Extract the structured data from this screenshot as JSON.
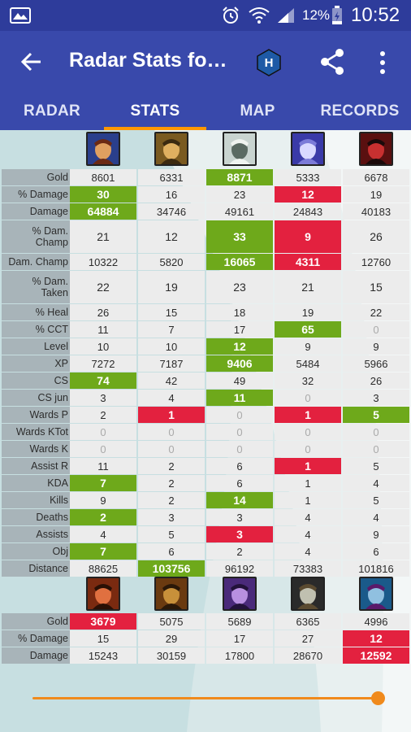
{
  "status": {
    "battery": "12%",
    "time": "10:52"
  },
  "appbar": {
    "title": "Radar Stats fo…",
    "badge": "H"
  },
  "tabs": [
    "RADAR",
    "STATS",
    "MAP",
    "RECORDS"
  ],
  "active_tab": 1,
  "colors": {
    "primary": "#3949ab",
    "status": "#2e3c9b",
    "accent": "#ff9800",
    "good": "#6ea91b",
    "bad": "#e3213f",
    "label_bg": "#a8b4b9",
    "cell_bg": "#ececec"
  },
  "team1": {
    "rows": [
      {
        "label": "Gold",
        "values": [
          [
            "8601",
            ""
          ],
          [
            "6331",
            ""
          ],
          [
            "8871",
            "green"
          ],
          [
            "5333",
            ""
          ],
          [
            "6678",
            ""
          ]
        ]
      },
      {
        "label": "% Damage",
        "values": [
          [
            "30",
            "green"
          ],
          [
            "16",
            ""
          ],
          [
            "23",
            ""
          ],
          [
            "12",
            "red"
          ],
          [
            "19",
            ""
          ]
        ]
      },
      {
        "label": "Damage",
        "values": [
          [
            "64884",
            "green"
          ],
          [
            "34746",
            ""
          ],
          [
            "49161",
            ""
          ],
          [
            "24843",
            ""
          ],
          [
            "40183",
            ""
          ]
        ]
      },
      {
        "label": "% Dam.\nChamp",
        "tall": true,
        "values": [
          [
            "21",
            ""
          ],
          [
            "12",
            ""
          ],
          [
            "33",
            "green"
          ],
          [
            "9",
            "red"
          ],
          [
            "26",
            ""
          ]
        ]
      },
      {
        "label": "Dam. Champ",
        "values": [
          [
            "10322",
            ""
          ],
          [
            "5820",
            ""
          ],
          [
            "16065",
            "green"
          ],
          [
            "4311",
            "red"
          ],
          [
            "12760",
            ""
          ]
        ]
      },
      {
        "label": "% Dam.\nTaken",
        "tall": true,
        "values": [
          [
            "22",
            ""
          ],
          [
            "19",
            ""
          ],
          [
            "23",
            ""
          ],
          [
            "21",
            ""
          ],
          [
            "15",
            ""
          ]
        ]
      },
      {
        "label": "% Heal",
        "values": [
          [
            "26",
            ""
          ],
          [
            "15",
            ""
          ],
          [
            "18",
            ""
          ],
          [
            "19",
            ""
          ],
          [
            "22",
            ""
          ]
        ]
      },
      {
        "label": "% CCT",
        "values": [
          [
            "11",
            ""
          ],
          [
            "7",
            ""
          ],
          [
            "17",
            ""
          ],
          [
            "65",
            "green"
          ],
          [
            "0",
            "zero"
          ]
        ]
      },
      {
        "label": "Level",
        "values": [
          [
            "10",
            ""
          ],
          [
            "10",
            ""
          ],
          [
            "12",
            "green"
          ],
          [
            "9",
            ""
          ],
          [
            "9",
            ""
          ]
        ]
      },
      {
        "label": "XP",
        "values": [
          [
            "7272",
            ""
          ],
          [
            "7187",
            ""
          ],
          [
            "9406",
            "green"
          ],
          [
            "5484",
            ""
          ],
          [
            "5966",
            ""
          ]
        ]
      },
      {
        "label": "CS",
        "values": [
          [
            "74",
            "green"
          ],
          [
            "42",
            ""
          ],
          [
            "49",
            ""
          ],
          [
            "32",
            ""
          ],
          [
            "26",
            ""
          ]
        ]
      },
      {
        "label": "CS jun",
        "values": [
          [
            "3",
            ""
          ],
          [
            "4",
            ""
          ],
          [
            "11",
            "green"
          ],
          [
            "0",
            "zero"
          ],
          [
            "3",
            ""
          ]
        ]
      },
      {
        "label": "Wards P",
        "values": [
          [
            "2",
            ""
          ],
          [
            "1",
            "red"
          ],
          [
            "0",
            "zero"
          ],
          [
            "1",
            "red"
          ],
          [
            "5",
            "green"
          ]
        ]
      },
      {
        "label": "Wards KTot",
        "values": [
          [
            "0",
            "zero"
          ],
          [
            "0",
            "zero"
          ],
          [
            "0",
            "zero"
          ],
          [
            "0",
            "zero"
          ],
          [
            "0",
            "zero"
          ]
        ]
      },
      {
        "label": "Wards K",
        "values": [
          [
            "0",
            "zero"
          ],
          [
            "0",
            "zero"
          ],
          [
            "0",
            "zero"
          ],
          [
            "0",
            "zero"
          ],
          [
            "0",
            "zero"
          ]
        ]
      },
      {
        "label": "Assist R",
        "values": [
          [
            "11",
            ""
          ],
          [
            "2",
            ""
          ],
          [
            "6",
            ""
          ],
          [
            "1",
            "red"
          ],
          [
            "5",
            ""
          ]
        ]
      },
      {
        "label": "KDA",
        "values": [
          [
            "7",
            "green"
          ],
          [
            "2",
            ""
          ],
          [
            "6",
            ""
          ],
          [
            "1",
            ""
          ],
          [
            "4",
            ""
          ]
        ]
      },
      {
        "label": "Kills",
        "values": [
          [
            "9",
            ""
          ],
          [
            "2",
            ""
          ],
          [
            "14",
            "green"
          ],
          [
            "1",
            ""
          ],
          [
            "5",
            ""
          ]
        ]
      },
      {
        "label": "Deaths",
        "values": [
          [
            "2",
            "green"
          ],
          [
            "3",
            ""
          ],
          [
            "3",
            ""
          ],
          [
            "4",
            ""
          ],
          [
            "4",
            ""
          ]
        ]
      },
      {
        "label": "Assists",
        "values": [
          [
            "4",
            ""
          ],
          [
            "5",
            ""
          ],
          [
            "3",
            "red"
          ],
          [
            "4",
            ""
          ],
          [
            "9",
            ""
          ]
        ]
      },
      {
        "label": "Obj",
        "values": [
          [
            "7",
            "green"
          ],
          [
            "6",
            ""
          ],
          [
            "2",
            ""
          ],
          [
            "4",
            ""
          ],
          [
            "6",
            ""
          ]
        ]
      },
      {
        "label": "Distance",
        "values": [
          [
            "88625",
            ""
          ],
          [
            "103756",
            "green"
          ],
          [
            "96192",
            ""
          ],
          [
            "73383",
            ""
          ],
          [
            "101816",
            ""
          ]
        ]
      }
    ]
  },
  "team2": {
    "rows": [
      {
        "label": "Gold",
        "values": [
          [
            "3679",
            "red"
          ],
          [
            "5075",
            ""
          ],
          [
            "5689",
            ""
          ],
          [
            "6365",
            ""
          ],
          [
            "4996",
            ""
          ]
        ]
      },
      {
        "label": "% Damage",
        "values": [
          [
            "15",
            ""
          ],
          [
            "29",
            ""
          ],
          [
            "17",
            ""
          ],
          [
            "27",
            ""
          ],
          [
            "12",
            "red"
          ]
        ]
      },
      {
        "label": "Damage",
        "values": [
          [
            "15243",
            ""
          ],
          [
            "30159",
            ""
          ],
          [
            "17800",
            ""
          ],
          [
            "28670",
            ""
          ],
          [
            "12592",
            "red"
          ]
        ]
      }
    ]
  },
  "timeline_progress": 1.0
}
